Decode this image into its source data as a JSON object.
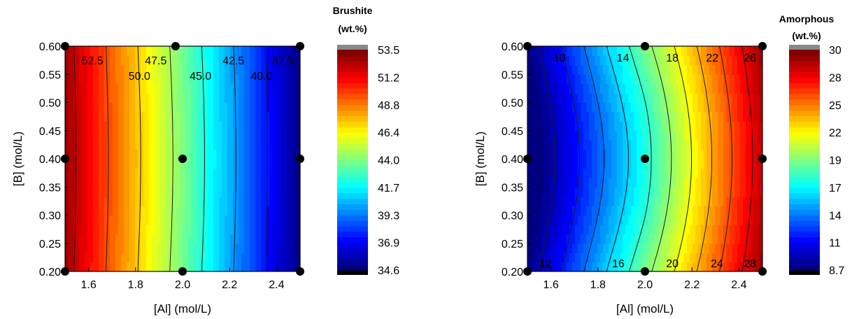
{
  "chart_data": [
    {
      "type": "heatmap",
      "subtype": "contour",
      "title": "",
      "xlabel": "[Al] (mol/L)",
      "ylabel": "[B] (mol/L)",
      "xlim": [
        1.5,
        2.5
      ],
      "ylim": [
        0.2,
        0.6
      ],
      "xticks": [
        "1.6",
        "1.8",
        "2.0",
        "2.2",
        "2.4"
      ],
      "yticks": [
        "0.20",
        "0.25",
        "0.30",
        "0.35",
        "0.40",
        "0.45",
        "0.50",
        "0.55",
        "0.60"
      ],
      "colorbar": {
        "title_line1": "Brushite",
        "title_line2": "(wt.%)",
        "ticks": [
          "34.6",
          "36.9",
          "39.3",
          "41.7",
          "44.0",
          "46.4",
          "48.8",
          "51.2",
          "53.5"
        ],
        "range": [
          34.6,
          53.5
        ],
        "over_color": "#888888",
        "under_color": "#000000"
      },
      "contour_levels": [
        "52.5",
        "50.0",
        "47.5",
        "45.0",
        "42.5",
        "40.0",
        "37.5"
      ],
      "contour_label_positions": [
        {
          "text": "52.5",
          "x": 1.57,
          "y": 0.575
        },
        {
          "text": "50.0",
          "x": 1.77,
          "y": 0.548
        },
        {
          "text": "47.5",
          "x": 1.84,
          "y": 0.575
        },
        {
          "text": "45.0",
          "x": 2.03,
          "y": 0.548
        },
        {
          "text": "42.5",
          "x": 2.17,
          "y": 0.575
        },
        {
          "text": "40.0",
          "x": 2.29,
          "y": 0.548
        },
        {
          "text": "37.5",
          "x": 2.38,
          "y": 0.575
        }
      ],
      "design_points": [
        {
          "x": 1.5,
          "y": 0.6
        },
        {
          "x": 1.97,
          "y": 0.6
        },
        {
          "x": 2.5,
          "y": 0.6
        },
        {
          "x": 1.5,
          "y": 0.4
        },
        {
          "x": 2.0,
          "y": 0.4
        },
        {
          "x": 2.5,
          "y": 0.4
        },
        {
          "x": 1.5,
          "y": 0.2
        },
        {
          "x": 2.0,
          "y": 0.2
        },
        {
          "x": 2.5,
          "y": 0.2
        }
      ],
      "field_model": {
        "at_x_min": 53.2,
        "at_x_max": 34.8,
        "y_effect": 0.3
      }
    },
    {
      "type": "heatmap",
      "subtype": "contour",
      "title": "",
      "xlabel": "[Al] (mol/L)",
      "ylabel": "[B] (mol/L)",
      "xlim": [
        1.5,
        2.5
      ],
      "ylim": [
        0.2,
        0.6
      ],
      "xticks": [
        "1.6",
        "1.8",
        "2.0",
        "2.2",
        "2.4"
      ],
      "yticks": [
        "0.20",
        "0.25",
        "0.30",
        "0.35",
        "0.40",
        "0.45",
        "0.50",
        "0.55",
        "0.60"
      ],
      "colorbar": {
        "title_line1": "Amorphous",
        "title_line2": "(wt.%)",
        "ticks": [
          "8.7",
          "11",
          "14",
          "17",
          "19",
          "22",
          "25",
          "28",
          "30"
        ],
        "range": [
          8.7,
          30
        ],
        "over_color": "#888888",
        "under_color": "#000000"
      },
      "contour_levels": [
        "10",
        "12",
        "14",
        "16",
        "18",
        "20",
        "22",
        "24",
        "26",
        "28"
      ],
      "contour_label_positions": [
        {
          "text": "10",
          "x": 1.61,
          "y": 0.58
        },
        {
          "text": "14",
          "x": 1.88,
          "y": 0.58
        },
        {
          "text": "18",
          "x": 2.09,
          "y": 0.58
        },
        {
          "text": "22",
          "x": 2.26,
          "y": 0.58
        },
        {
          "text": "26",
          "x": 2.42,
          "y": 0.58
        },
        {
          "text": "12",
          "x": 1.55,
          "y": 0.215
        },
        {
          "text": "16",
          "x": 1.86,
          "y": 0.215
        },
        {
          "text": "20",
          "x": 2.09,
          "y": 0.215
        },
        {
          "text": "24",
          "x": 2.28,
          "y": 0.215
        },
        {
          "text": "28",
          "x": 2.42,
          "y": 0.215
        }
      ],
      "design_points": [
        {
          "x": 1.5,
          "y": 0.6
        },
        {
          "x": 2.0,
          "y": 0.6
        },
        {
          "x": 2.5,
          "y": 0.6
        },
        {
          "x": 1.5,
          "y": 0.4
        },
        {
          "x": 2.0,
          "y": 0.4
        },
        {
          "x": 2.5,
          "y": 0.4
        },
        {
          "x": 1.5,
          "y": 0.2
        },
        {
          "x": 2.0,
          "y": 0.2
        },
        {
          "x": 2.5,
          "y": 0.2
        }
      ],
      "field_model": {
        "at_x_min": 9.0,
        "at_x_max": 29.8,
        "y_effect": -2.4
      }
    }
  ]
}
